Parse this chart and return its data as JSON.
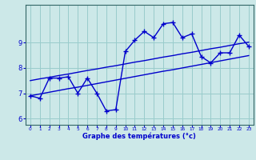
{
  "x": [
    0,
    1,
    2,
    3,
    4,
    5,
    6,
    7,
    8,
    9,
    10,
    11,
    12,
    13,
    14,
    15,
    16,
    17,
    18,
    19,
    20,
    21,
    22,
    23
  ],
  "temp_line": [
    6.9,
    6.8,
    7.6,
    7.6,
    7.65,
    7.0,
    7.6,
    7.0,
    6.3,
    6.35,
    8.65,
    9.1,
    9.45,
    9.2,
    9.75,
    9.8,
    9.2,
    9.35,
    8.45,
    8.2,
    8.6,
    8.6,
    9.3,
    8.85
  ],
  "trend_low": [
    6.9,
    6.97,
    7.04,
    7.11,
    7.18,
    7.24,
    7.31,
    7.38,
    7.45,
    7.52,
    7.59,
    7.66,
    7.73,
    7.8,
    7.87,
    7.93,
    8.0,
    8.07,
    8.14,
    8.21,
    8.28,
    8.35,
    8.42,
    8.49
  ],
  "trend_high": [
    7.5,
    7.57,
    7.63,
    7.7,
    7.76,
    7.83,
    7.9,
    7.96,
    8.03,
    8.09,
    8.16,
    8.23,
    8.29,
    8.36,
    8.43,
    8.49,
    8.56,
    8.62,
    8.69,
    8.76,
    8.82,
    8.89,
    8.96,
    9.02
  ],
  "line_color": "#0000cc",
  "bg_color": "#cce8e8",
  "grid_color": "#99cccc",
  "ylim": [
    5.75,
    10.5
  ],
  "xlim": [
    -0.5,
    23.5
  ],
  "yticks": [
    6,
    7,
    8,
    9
  ],
  "xlabel": "Graphe des températures (°c)",
  "marker": "+",
  "marker_size": 4,
  "linewidth": 1.0
}
